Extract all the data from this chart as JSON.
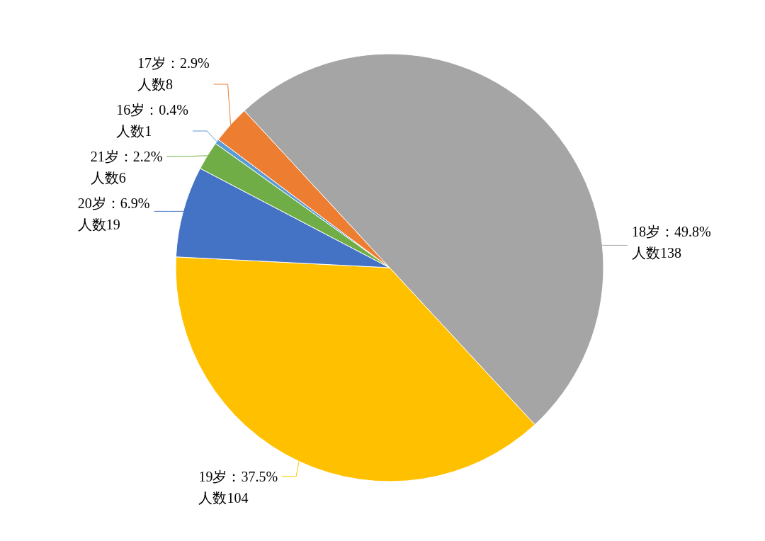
{
  "chart_data": {
    "type": "pie",
    "categories": [
      "16岁",
      "17岁",
      "18岁",
      "19岁",
      "20岁",
      "21岁"
    ],
    "values": [
      1,
      8,
      138,
      104,
      19,
      6
    ],
    "colors": [
      "#5b9bd5",
      "#ed7d31",
      "#a5a5a5",
      "#ffc000",
      "#4472c4",
      "#70ad47"
    ],
    "value_labels": [
      "：0.4%\n人数1",
      "：2.9%\n人数8",
      "：49.8%\n人数138",
      "：37.5%\n人数104",
      "：6.9%\n人数19",
      "：2.2%\n人数6"
    ]
  }
}
